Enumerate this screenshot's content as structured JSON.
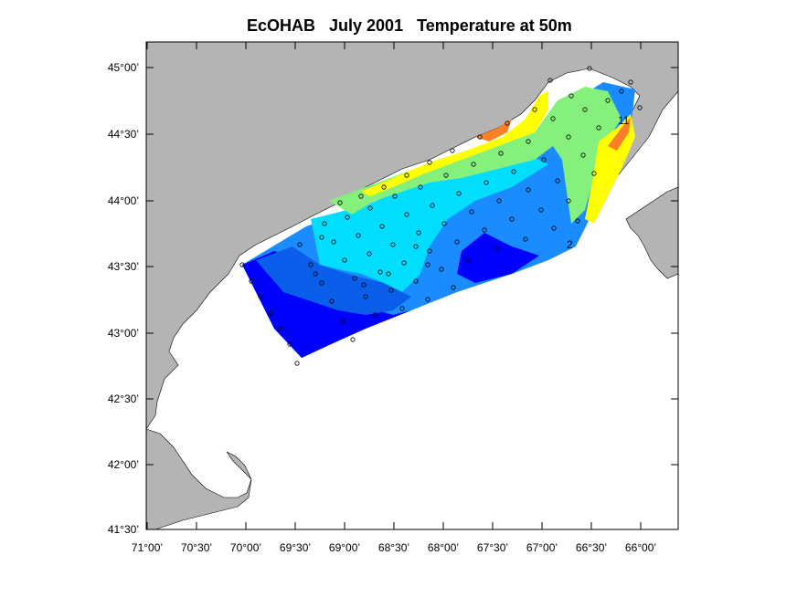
{
  "title": "EcOHAB   July 2001   Temperature at 50m",
  "map": {
    "lon_range": [
      "71°00'",
      "65°40'"
    ],
    "lat_range": [
      "41°30'",
      "45°20'"
    ],
    "x_ticks": [
      "71°00’",
      "70°30’",
      "70°00’",
      "69°30’",
      "69°00’",
      "68°30’",
      "68°00’",
      "67°30’",
      "67°00’",
      "66°30’",
      "66°00’"
    ],
    "y_ticks": [
      "45°00’",
      "44°30’",
      "44°00’",
      "43°30’",
      "43°00’",
      "42°30’",
      "42°00’",
      "41°30’"
    ],
    "land_color": "#b4b4b4",
    "contour_colors": [
      "#0000ff",
      "#0a5eea",
      "#1b8cff",
      "#00ddff",
      "#85f07b",
      "#ffff00",
      "#ff7f27"
    ],
    "contour_labels": [
      "2",
      "11"
    ]
  }
}
